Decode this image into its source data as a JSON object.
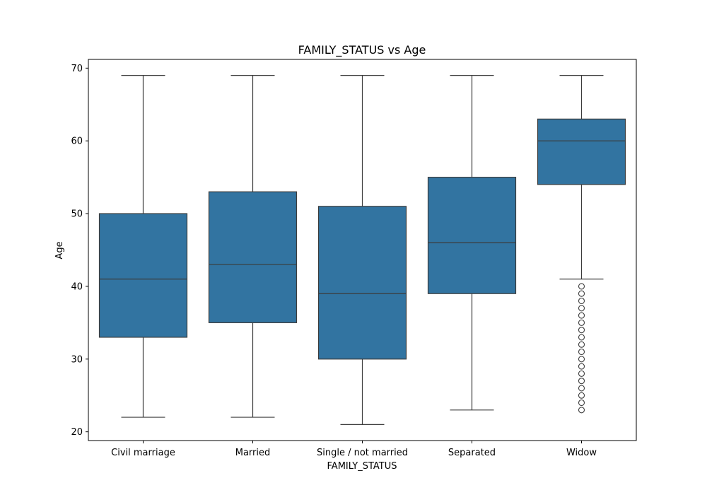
{
  "chart_data": {
    "type": "boxplot",
    "title": "FAMILY_STATUS vs Age",
    "xlabel": "FAMILY_STATUS",
    "ylabel": "Age",
    "ylim": [
      18.8,
      71.2
    ],
    "yticks": [
      20,
      30,
      40,
      50,
      60,
      70
    ],
    "categories": [
      "Civil marriage",
      "Married",
      "Single / not married",
      "Separated",
      "Widow"
    ],
    "box_color": "#3274a1",
    "line_color": "#3b3b3b",
    "boxes": [
      {
        "category": "Civil marriage",
        "whisker_low": 22,
        "q1": 33,
        "median": 41,
        "q3": 50,
        "whisker_high": 69,
        "outliers": []
      },
      {
        "category": "Married",
        "whisker_low": 22,
        "q1": 35,
        "median": 43,
        "q3": 53,
        "whisker_high": 69,
        "outliers": []
      },
      {
        "category": "Single / not married",
        "whisker_low": 21,
        "q1": 30,
        "median": 39,
        "q3": 51,
        "whisker_high": 69,
        "outliers": []
      },
      {
        "category": "Separated",
        "whisker_low": 23,
        "q1": 39,
        "median": 46,
        "q3": 55,
        "whisker_high": 69,
        "outliers": []
      },
      {
        "category": "Widow",
        "whisker_low": 41,
        "q1": 54,
        "median": 60,
        "q3": 63,
        "whisker_high": 69,
        "outliers": [
          40,
          39,
          38,
          37,
          36,
          35,
          34,
          33,
          32,
          31,
          30,
          29,
          28,
          27,
          26,
          25,
          24,
          23
        ]
      }
    ],
    "grid": false,
    "legend": "none"
  }
}
